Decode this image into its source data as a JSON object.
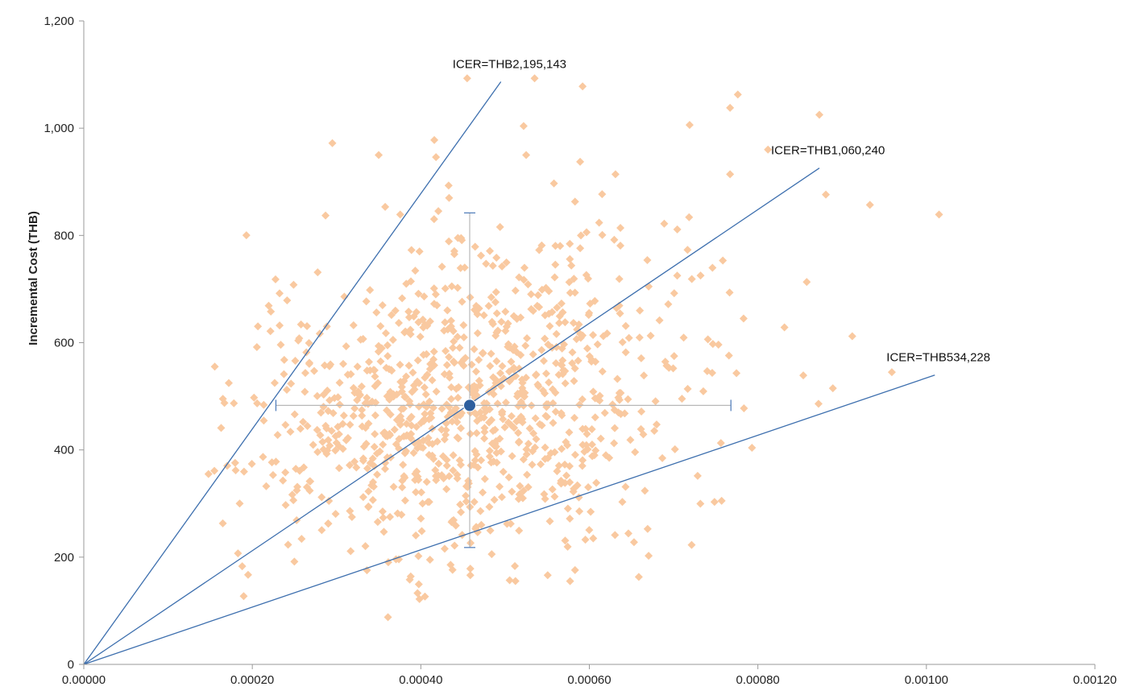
{
  "chart_data": {
    "type": "scatter",
    "title": "",
    "xlabel": "",
    "ylabel": "Incremental Cost (THB)",
    "xlim": [
      0,
      0.0012
    ],
    "ylim": [
      0,
      1200
    ],
    "x_ticks": [
      "0.00000",
      "0.00020",
      "0.00040",
      "0.00060",
      "0.00080",
      "0.00100",
      "0.00120"
    ],
    "y_ticks": [
      "0",
      "200",
      "400",
      "600",
      "800",
      "1,000",
      "1,200"
    ],
    "x_tick_values": [
      0,
      0.0002,
      0.0004,
      0.0006,
      0.0008,
      0.001,
      0.0012
    ],
    "y_tick_values": [
      0,
      200,
      400,
      600,
      800,
      1000,
      1200
    ],
    "grid": false,
    "legend": "none",
    "colors": {
      "points": "#f9c9a0",
      "lines": "#3d6fae",
      "mean_marker": "#2e5f9e",
      "crosshair": "#b8b8b8",
      "crosshair_caps": "#4a78b8",
      "axis": "#9a9a9a"
    },
    "points": {
      "count": 1000,
      "mean": [
        0.000458,
        483
      ],
      "x_range": [
        0.000148,
        0.00101
      ],
      "y_range": [
        88,
        1095
      ],
      "extremes": [
        [
          0.000455,
          1093
        ],
        [
          0.000535,
          1093
        ],
        [
          0.000592,
          1078
        ],
        [
          0.000767,
          1038
        ],
        [
          0.000873,
          1025
        ],
        [
          0.000719,
          1006
        ],
        [
          0.000522,
          1004
        ],
        [
          0.000416,
          978
        ],
        [
          0.000295,
          972
        ],
        [
          0.00035,
          950
        ],
        [
          0.000525,
          950
        ],
        [
          0.000812,
          960
        ],
        [
          0.000418,
          946
        ],
        [
          0.000631,
          914
        ],
        [
          0.000767,
          914
        ],
        [
          0.000433,
          893
        ],
        [
          0.000558,
          897
        ],
        [
          0.000933,
          857
        ],
        [
          0.001015,
          839
        ],
        [
          0.000583,
          863
        ],
        [
          0.000163,
          441
        ],
        [
          0.000148,
          355
        ],
        [
          0.000155,
          361
        ],
        [
          0.000185,
          300
        ],
        [
          0.000165,
          263
        ],
        [
          0.000183,
          207
        ],
        [
          0.000188,
          183
        ],
        [
          0.000195,
          167
        ],
        [
          0.000249,
          708
        ],
        [
          0.000222,
          658
        ],
        [
          0.000361,
          88
        ],
        [
          0.000388,
          164
        ],
        [
          0.000583,
          176
        ],
        [
          0.000653,
          228
        ],
        [
          0.000757,
          305
        ],
        [
          0.000793,
          404
        ],
        [
          0.000912,
          612
        ],
        [
          0.000959,
          545
        ],
        [
          0.000889,
          515
        ],
        [
          0.000872,
          486
        ]
      ]
    },
    "mean_point": {
      "x": 0.000458,
      "y": 483
    },
    "mean_ci": {
      "x": [
        0.000228,
        0.000768
      ],
      "y": [
        218,
        842
      ]
    },
    "icer_lines": [
      {
        "label": "ICER=THB2,195,143",
        "slope": 2195143,
        "x_end": 0.000495
      },
      {
        "label": "ICER=THB1,060,240",
        "slope": 1060240,
        "x_end": 0.000873
      },
      {
        "label": "ICER=THB534,228",
        "slope": 534228,
        "x_end": 0.00101
      }
    ]
  }
}
